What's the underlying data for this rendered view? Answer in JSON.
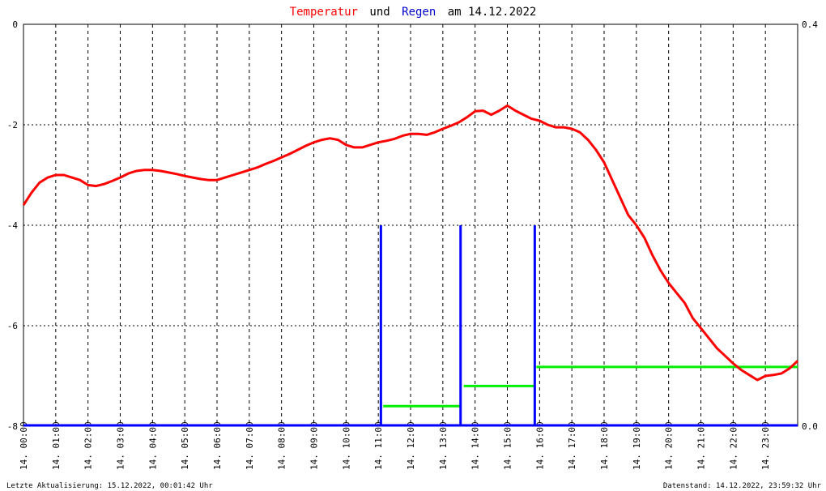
{
  "title": {
    "part1": "Temperatur",
    "part2": "und",
    "part3": "Regen",
    "part4": "am 14.12.2022",
    "color1": "#ff0000",
    "color2": "#000000",
    "color3": "#0000cc",
    "color4": "#000000"
  },
  "footer": {
    "left": "Letzte Aktualisierung: 15.12.2022, 00:01:42 Uhr",
    "right": "Datenstand: 14.12.2022, 23:59:32 Uhr"
  },
  "chart_data": {
    "type": "line",
    "title": "Temperatur und Regen am 14.12.2022",
    "x_unit": "hours",
    "xlim": [
      0,
      24
    ],
    "ylim_left": [
      -8,
      0
    ],
    "ylim_right": [
      0,
      0.4
    ],
    "left_ticks": [
      "0",
      "-2",
      "-4",
      "-6",
      "-8"
    ],
    "left_tick_values": [
      0,
      -2,
      -4,
      -6,
      -8
    ],
    "right_ticks": [
      "0.4",
      "0.0"
    ],
    "right_tick_values": [
      0.4,
      0.0
    ],
    "x_tick_labels": [
      "14. 00:00",
      "14. 01:00",
      "14. 02:00",
      "14. 03:00",
      "14. 04:00",
      "14. 05:00",
      "14. 06:00",
      "14. 07:00",
      "14. 08:00",
      "14. 09:00",
      "14. 10:00",
      "14. 11:00",
      "14. 12:00",
      "14. 13:00",
      "14. 14:00",
      "14. 15:00",
      "14. 16:00",
      "14. 17:00",
      "14. 18:00",
      "14. 19:00",
      "14. 20:00",
      "14. 21:00",
      "14. 22:00",
      "14. 23:00"
    ],
    "grid": true,
    "colors": {
      "temperature": "#ff0000",
      "rain": "#0000ff",
      "rain_sum": "#00ee00",
      "grid": "#000000"
    },
    "series": [
      {
        "name": "Temperatur",
        "axis": "left",
        "points": [
          [
            0.0,
            -3.6
          ],
          [
            0.25,
            -3.35
          ],
          [
            0.5,
            -3.15
          ],
          [
            0.75,
            -3.05
          ],
          [
            1.0,
            -3.0
          ],
          [
            1.25,
            -3.0
          ],
          [
            1.5,
            -3.05
          ],
          [
            1.75,
            -3.1
          ],
          [
            2.0,
            -3.2
          ],
          [
            2.25,
            -3.22
          ],
          [
            2.5,
            -3.18
          ],
          [
            2.75,
            -3.12
          ],
          [
            3.0,
            -3.05
          ],
          [
            3.25,
            -2.97
          ],
          [
            3.5,
            -2.92
          ],
          [
            3.75,
            -2.9
          ],
          [
            4.0,
            -2.9
          ],
          [
            4.25,
            -2.92
          ],
          [
            4.5,
            -2.95
          ],
          [
            4.75,
            -2.98
          ],
          [
            5.0,
            -3.02
          ],
          [
            5.25,
            -3.05
          ],
          [
            5.5,
            -3.08
          ],
          [
            5.75,
            -3.1
          ],
          [
            6.0,
            -3.1
          ],
          [
            6.25,
            -3.05
          ],
          [
            6.5,
            -3.0
          ],
          [
            6.75,
            -2.95
          ],
          [
            7.0,
            -2.9
          ],
          [
            7.25,
            -2.85
          ],
          [
            7.5,
            -2.78
          ],
          [
            7.75,
            -2.72
          ],
          [
            8.0,
            -2.65
          ],
          [
            8.25,
            -2.58
          ],
          [
            8.5,
            -2.5
          ],
          [
            8.75,
            -2.42
          ],
          [
            9.0,
            -2.35
          ],
          [
            9.25,
            -2.3
          ],
          [
            9.5,
            -2.27
          ],
          [
            9.75,
            -2.3
          ],
          [
            10.0,
            -2.4
          ],
          [
            10.25,
            -2.45
          ],
          [
            10.5,
            -2.45
          ],
          [
            10.75,
            -2.4
          ],
          [
            11.0,
            -2.35
          ],
          [
            11.25,
            -2.32
          ],
          [
            11.5,
            -2.28
          ],
          [
            11.75,
            -2.22
          ],
          [
            12.0,
            -2.18
          ],
          [
            12.25,
            -2.18
          ],
          [
            12.5,
            -2.2
          ],
          [
            12.75,
            -2.15
          ],
          [
            13.0,
            -2.08
          ],
          [
            13.25,
            -2.02
          ],
          [
            13.5,
            -1.95
          ],
          [
            13.75,
            -1.85
          ],
          [
            14.0,
            -1.73
          ],
          [
            14.25,
            -1.72
          ],
          [
            14.5,
            -1.8
          ],
          [
            14.75,
            -1.72
          ],
          [
            15.0,
            -1.62
          ],
          [
            15.25,
            -1.72
          ],
          [
            15.5,
            -1.8
          ],
          [
            15.75,
            -1.88
          ],
          [
            16.0,
            -1.92
          ],
          [
            16.25,
            -2.0
          ],
          [
            16.5,
            -2.05
          ],
          [
            16.75,
            -2.05
          ],
          [
            17.0,
            -2.08
          ],
          [
            17.25,
            -2.15
          ],
          [
            17.5,
            -2.3
          ],
          [
            17.75,
            -2.5
          ],
          [
            18.0,
            -2.75
          ],
          [
            18.25,
            -3.1
          ],
          [
            18.5,
            -3.45
          ],
          [
            18.75,
            -3.8
          ],
          [
            19.0,
            -4.0
          ],
          [
            19.25,
            -4.25
          ],
          [
            19.5,
            -4.6
          ],
          [
            19.75,
            -4.9
          ],
          [
            20.0,
            -5.15
          ],
          [
            20.25,
            -5.35
          ],
          [
            20.5,
            -5.55
          ],
          [
            20.75,
            -5.85
          ],
          [
            21.0,
            -6.05
          ],
          [
            21.25,
            -6.25
          ],
          [
            21.5,
            -6.45
          ],
          [
            21.75,
            -6.6
          ],
          [
            22.0,
            -6.75
          ],
          [
            22.25,
            -6.88
          ],
          [
            22.5,
            -6.98
          ],
          [
            22.75,
            -7.08
          ],
          [
            23.0,
            -7.0
          ],
          [
            23.25,
            -6.98
          ],
          [
            23.5,
            -6.95
          ],
          [
            23.75,
            -6.85
          ],
          [
            24.0,
            -6.7
          ]
        ]
      },
      {
        "name": "Regen",
        "axis": "right",
        "type": "bar",
        "points": [
          [
            11.08,
            0.2
          ],
          [
            13.55,
            0.2
          ],
          [
            15.85,
            0.2
          ]
        ]
      },
      {
        "name": "Regen Summe",
        "axis": "left",
        "type": "step",
        "segments": [
          [
            11.15,
            13.55,
            -7.6
          ],
          [
            13.65,
            15.85,
            -7.2
          ],
          [
            15.9,
            24.0,
            -6.82
          ]
        ]
      }
    ]
  }
}
